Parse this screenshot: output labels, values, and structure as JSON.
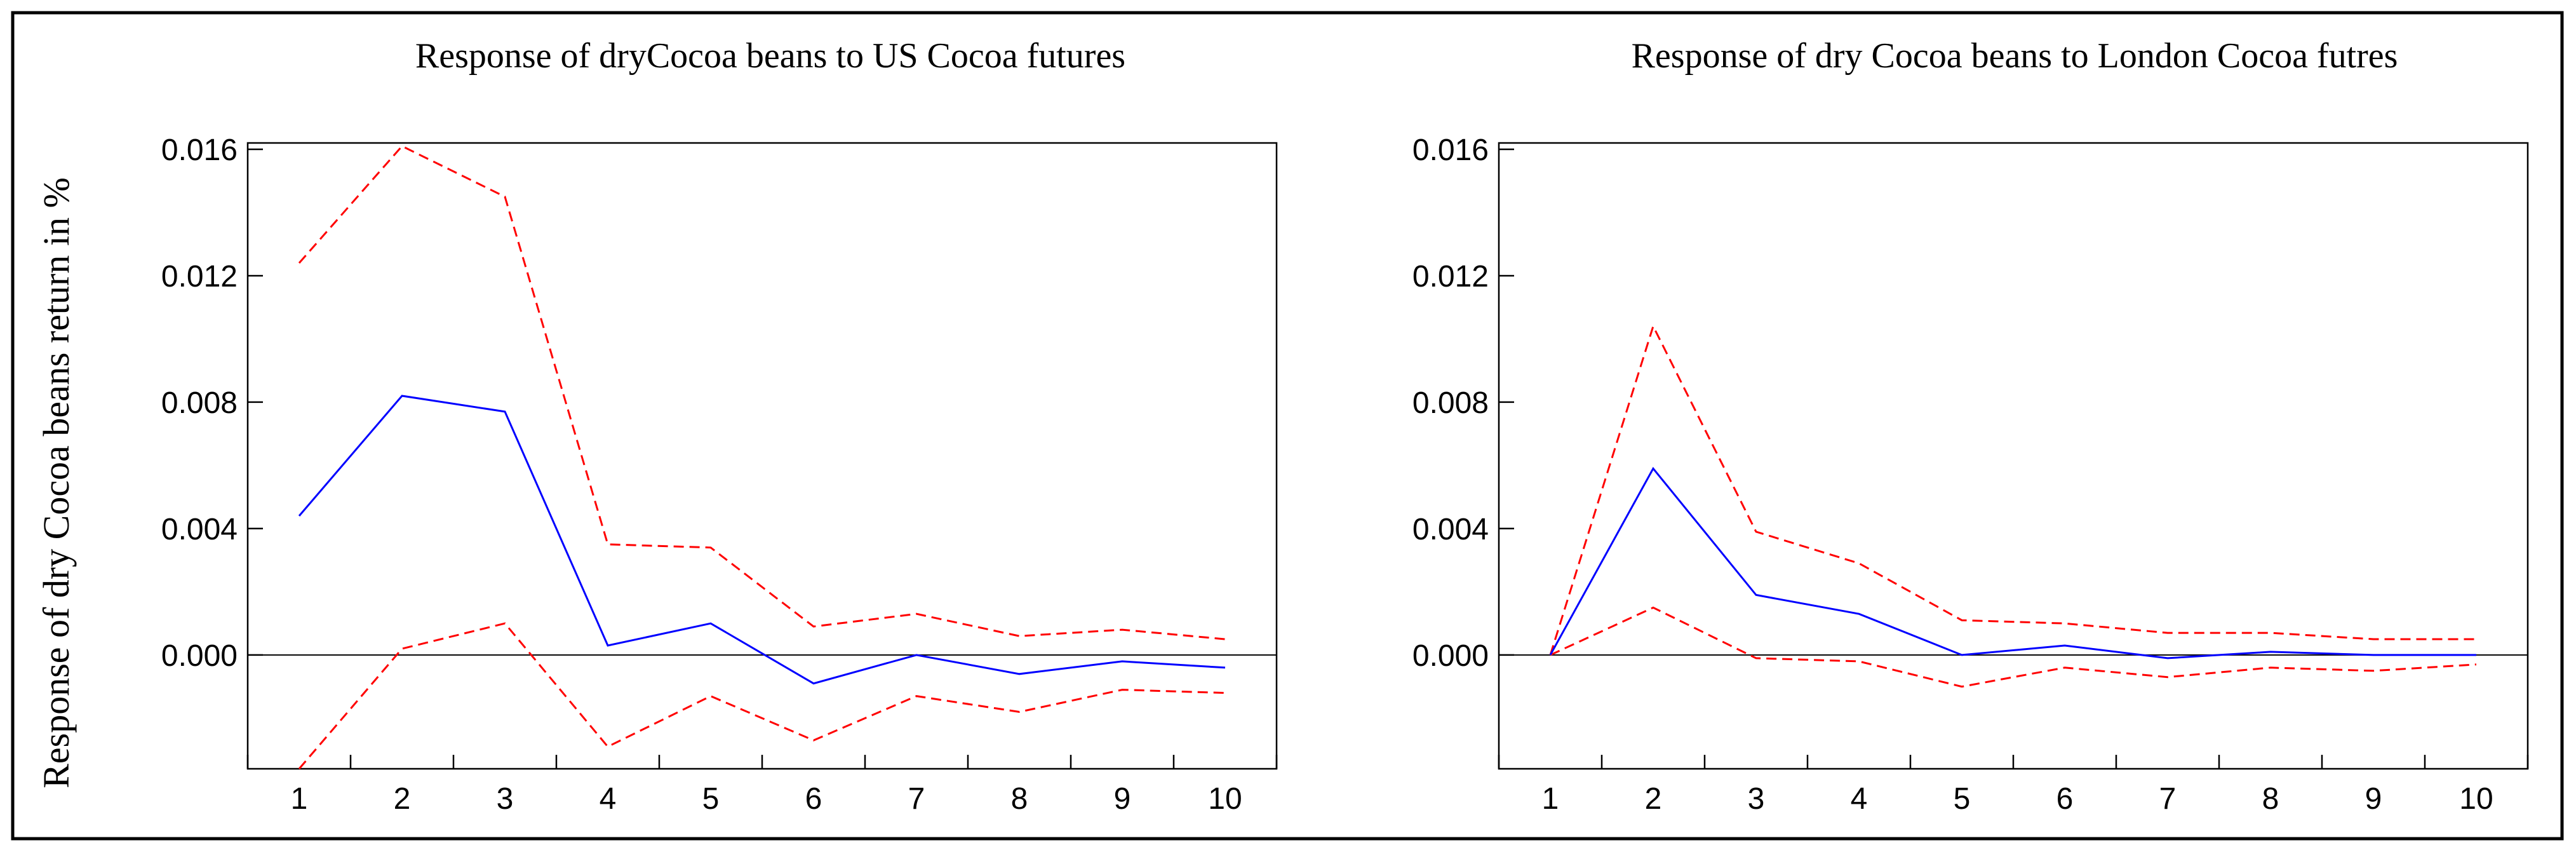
{
  "ylabel": "Response of dry Cocoa beans return in %",
  "colors": {
    "response": "#0000ff",
    "band": "#ff0000",
    "frame": "#000000",
    "zero": "#000000"
  },
  "chart_data": [
    {
      "type": "line",
      "title": "Response of dryCocoa beans to US Cocoa futures",
      "x": [
        1,
        2,
        3,
        4,
        5,
        6,
        7,
        8,
        9,
        10
      ],
      "categories": [
        "1",
        "2",
        "3",
        "4",
        "5",
        "6",
        "7",
        "8",
        "9",
        "10"
      ],
      "ylim": [
        -0.0036,
        0.0162
      ],
      "yticks": [
        0.0,
        0.004,
        0.008,
        0.012,
        0.016
      ],
      "ytick_labels": [
        "0.000",
        "0.004",
        "0.008",
        "0.012",
        "0.016"
      ],
      "series": [
        {
          "name": "response",
          "style": "solid",
          "values": [
            0.0044,
            0.0082,
            0.0077,
            0.0003,
            0.001,
            -0.0009,
            0.0,
            -0.0006,
            -0.0002,
            -0.0004
          ]
        },
        {
          "name": "upper band",
          "style": "dashed",
          "values": [
            0.0124,
            0.0161,
            0.0145,
            0.0035,
            0.0034,
            0.0009,
            0.0013,
            0.0006,
            0.0008,
            0.0005
          ]
        },
        {
          "name": "lower band",
          "style": "dashed",
          "values": [
            -0.0036,
            0.0002,
            0.001,
            -0.0029,
            -0.0013,
            -0.0027,
            -0.0013,
            -0.0018,
            -0.0011,
            -0.0012
          ]
        }
      ]
    },
    {
      "type": "line",
      "title": "Response of dry Cocoa beans to London Cocoa futres",
      "x": [
        1,
        2,
        3,
        4,
        5,
        6,
        7,
        8,
        9,
        10
      ],
      "categories": [
        "1",
        "2",
        "3",
        "4",
        "5",
        "6",
        "7",
        "8",
        "9",
        "10"
      ],
      "ylim": [
        -0.0036,
        0.0162
      ],
      "yticks": [
        0.0,
        0.004,
        0.008,
        0.012,
        0.016
      ],
      "ytick_labels": [
        "0.000",
        "0.004",
        "0.008",
        "0.012",
        "0.016"
      ],
      "series": [
        {
          "name": "response",
          "style": "solid",
          "values": [
            0.0,
            0.0059,
            0.0019,
            0.0013,
            0.0,
            0.0003,
            -0.0001,
            0.0001,
            0.0,
            0.0
          ]
        },
        {
          "name": "upper band",
          "style": "dashed",
          "values": [
            0.0,
            0.0104,
            0.0039,
            0.0029,
            0.0011,
            0.001,
            0.0007,
            0.0007,
            0.0005,
            0.0005
          ]
        },
        {
          "name": "lower band",
          "style": "dashed",
          "values": [
            0.0,
            0.0015,
            -0.0001,
            -0.0002,
            -0.001,
            -0.0004,
            -0.0007,
            -0.0004,
            -0.0005,
            -0.0003
          ]
        }
      ]
    }
  ]
}
